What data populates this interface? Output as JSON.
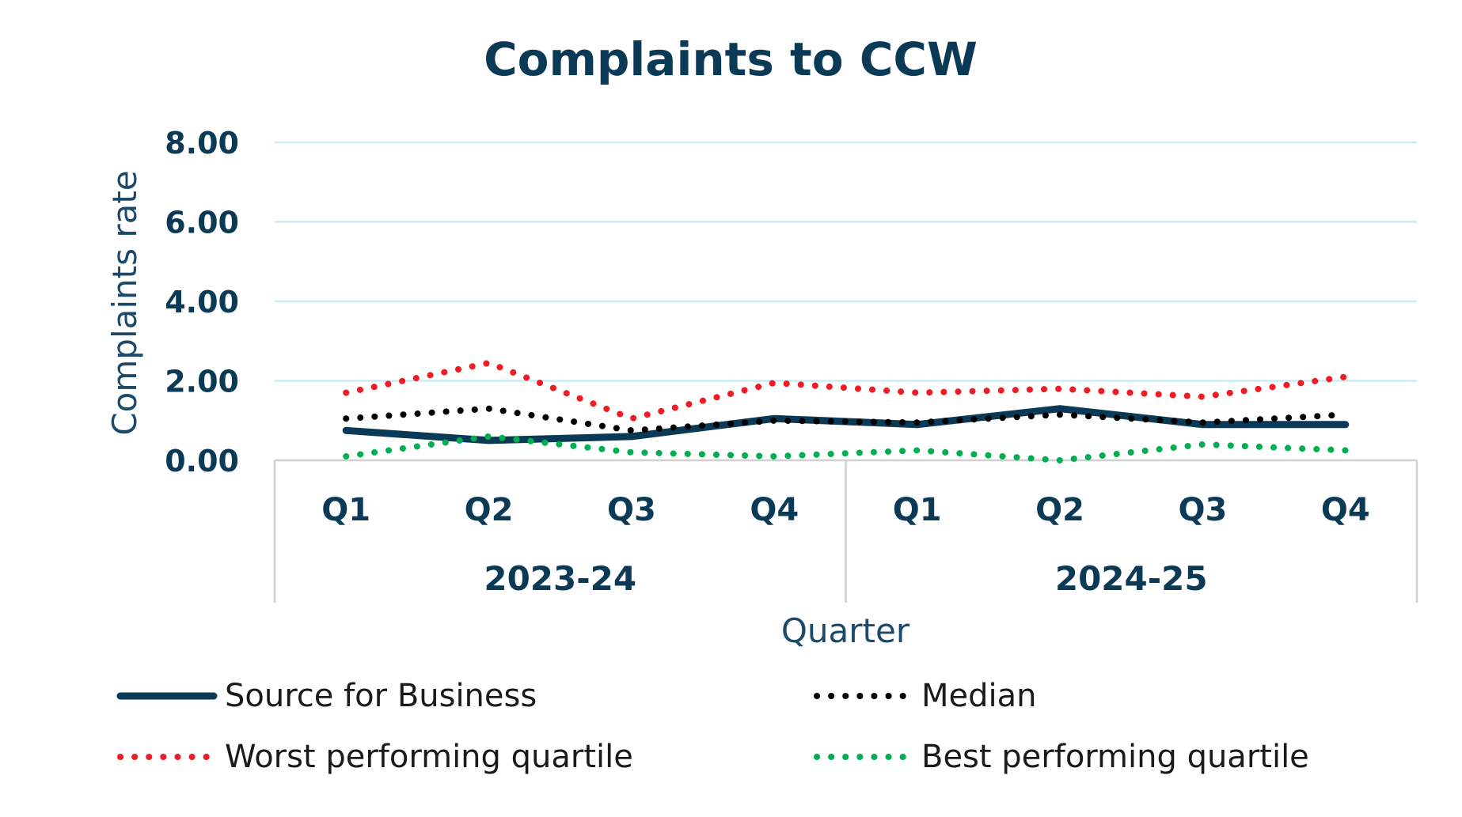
{
  "chart_data": {
    "type": "line",
    "title": "Complaints to CCW",
    "xlabel": "Quarter",
    "ylabel": "Complaints rate",
    "ylim": [
      0,
      8
    ],
    "yticks": [
      "0.00",
      "2.00",
      "4.00",
      "6.00",
      "8.00"
    ],
    "categories": [
      "Q1",
      "Q2",
      "Q3",
      "Q4",
      "Q1",
      "Q2",
      "Q3",
      "Q4"
    ],
    "groups": [
      {
        "label": "2023-24",
        "span": 4
      },
      {
        "label": "2024-25",
        "span": 4
      }
    ],
    "grid": true,
    "legend_position": "bottom",
    "series": [
      {
        "name": "Source for Business",
        "color": "#0b3a57",
        "style": "solid",
        "values": [
          0.75,
          0.5,
          0.6,
          1.05,
          0.9,
          1.3,
          0.9,
          0.9
        ]
      },
      {
        "name": "Median",
        "color": "#000000",
        "style": "dotted",
        "values": [
          1.05,
          1.3,
          0.75,
          1.0,
          0.95,
          1.15,
          0.95,
          1.15
        ]
      },
      {
        "name": "Worst performing quartile",
        "color": "#ee1c25",
        "style": "dotted",
        "values": [
          1.7,
          2.45,
          1.05,
          1.95,
          1.7,
          1.8,
          1.6,
          2.1
        ]
      },
      {
        "name": "Best performing quartile",
        "color": "#00b050",
        "style": "dotted",
        "values": [
          0.1,
          0.6,
          0.2,
          0.1,
          0.25,
          0.0,
          0.4,
          0.25
        ]
      }
    ]
  }
}
